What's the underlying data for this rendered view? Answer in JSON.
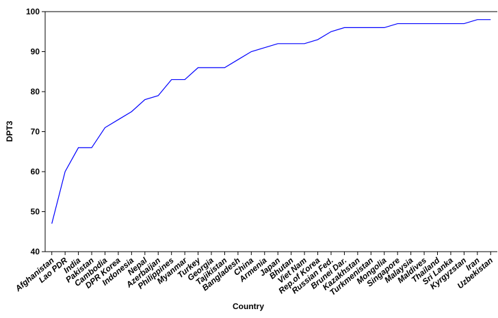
{
  "chart_data": {
    "type": "line",
    "x_label": "Country",
    "y_label": "DPT3",
    "categories": [
      "Afghanistan",
      "Lao PDR",
      "India",
      "Pakistan",
      "Cambodia",
      "DPR Korea",
      "Indonesia",
      "Nepal",
      "Azerbaijan",
      "Philippines",
      "Myanmar",
      "Turkey",
      "Georgia",
      "Tajikistan",
      "Bangladesh",
      "China",
      "Armenia",
      "Japan",
      "Bhutan",
      "Viet Nam",
      "Rep.of Korea",
      "Russian Fed.",
      "Brunei Dar.",
      "Kazakhstan",
      "Turkmenistan",
      "Mongolia",
      "Singapore",
      "Malaysia",
      "Maldives",
      "Thailand",
      "Sri Lanka",
      "Kyrgyzstan",
      "Iran",
      "Uzbekistan"
    ],
    "values": [
      47,
      60,
      66,
      66,
      71,
      73,
      75,
      78,
      79,
      83,
      83,
      86,
      86,
      86,
      88,
      90,
      91,
      92,
      92,
      92,
      93,
      95,
      96,
      96,
      96,
      96,
      97,
      97,
      97,
      97,
      97,
      97,
      98,
      98
    ],
    "color": "#0000ff",
    "ylim": [
      40,
      100
    ],
    "yticks": [
      40,
      50,
      60,
      70,
      80,
      90,
      100
    ]
  }
}
